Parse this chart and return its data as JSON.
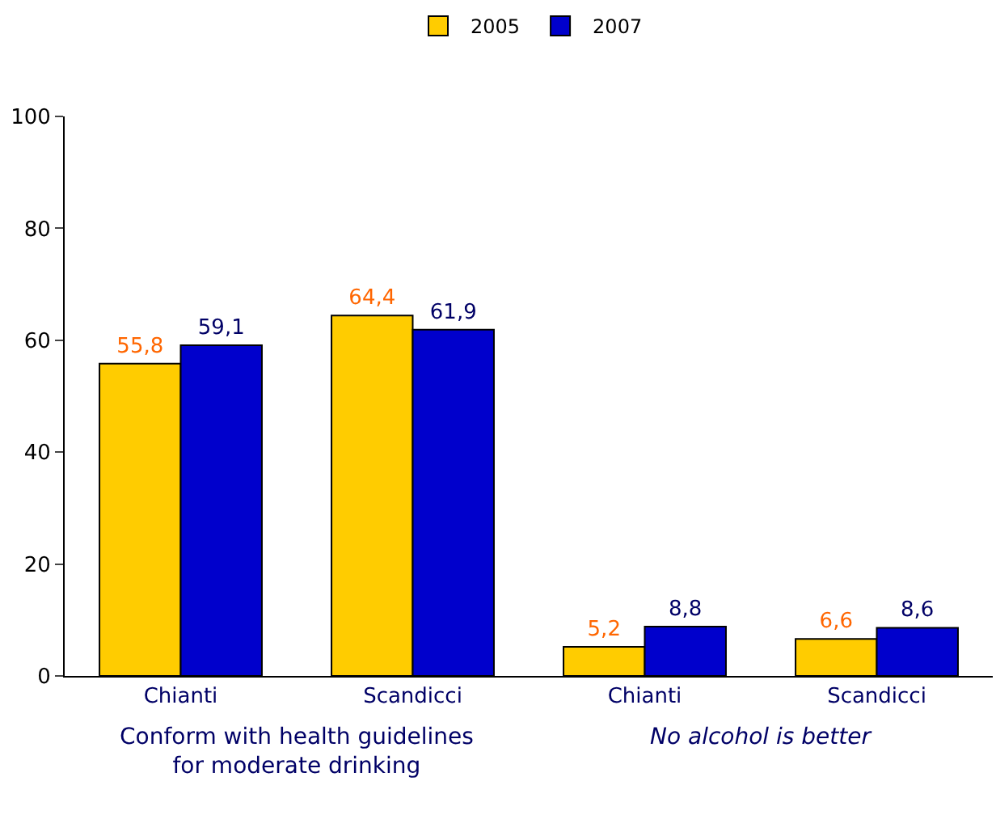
{
  "chart_data": {
    "type": "bar",
    "categories": [
      "Chianti",
      "Scandicci",
      "Chianti",
      "Scandicci"
    ],
    "series": [
      {
        "name": "2005",
        "color": "#ffcc00",
        "values": [
          55.8,
          64.4,
          5.2,
          6.6
        ],
        "value_labels": [
          "55,8",
          "64,4",
          "5,2",
          "6,6"
        ]
      },
      {
        "name": "2007",
        "color": "#0000cc",
        "values": [
          59.1,
          61.9,
          8.8,
          8.6
        ],
        "value_labels": [
          "59,1",
          "61,9",
          "8,8",
          "8,6"
        ]
      }
    ],
    "ylim": [
      0,
      100
    ],
    "yticks": [
      0,
      20,
      40,
      60,
      80,
      100
    ],
    "grid": false,
    "legend": "top",
    "annotations": [
      "Conform with health guidelines\nfor moderate drinking",
      "No alcohol is better"
    ]
  }
}
